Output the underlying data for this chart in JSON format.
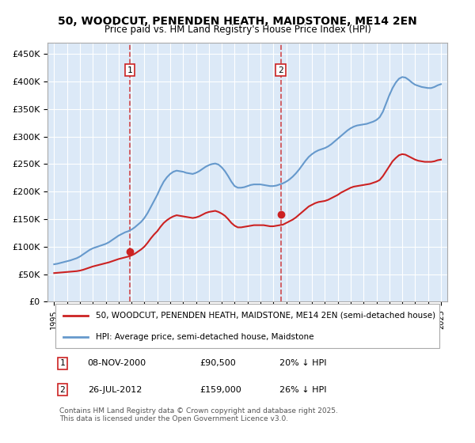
{
  "title": "50, WOODCUT, PENENDEN HEATH, MAIDSTONE, ME14 2EN",
  "subtitle": "Price paid vs. HM Land Registry's House Price Index (HPI)",
  "bg_color": "#dce9f7",
  "plot_bg_color": "#dce9f7",
  "grid_color": "#ffffff",
  "hpi_color": "#6699cc",
  "price_color": "#cc2222",
  "dashed_line_color": "#cc2222",
  "sale1_x": 2000.86,
  "sale1_y": 90500,
  "sale2_x": 2012.57,
  "sale2_y": 159000,
  "legend1": "50, WOODCUT, PENENDEN HEATH, MAIDSTONE, ME14 2EN (semi-detached house)",
  "legend2": "HPI: Average price, semi-detached house, Maidstone",
  "annotation1_label": "1",
  "annotation1_date": "08-NOV-2000",
  "annotation1_price": "£90,500",
  "annotation1_pct": "20% ↓ HPI",
  "annotation2_label": "2",
  "annotation2_date": "26-JUL-2012",
  "annotation2_price": "£159,000",
  "annotation2_pct": "26% ↓ HPI",
  "footer": "Contains HM Land Registry data © Crown copyright and database right 2025.\nThis data is licensed under the Open Government Licence v3.0.",
  "ylim_min": 0,
  "ylim_max": 470000,
  "yticks": [
    0,
    50000,
    100000,
    150000,
    200000,
    250000,
    300000,
    350000,
    400000,
    450000
  ],
  "xlim_min": 1994.5,
  "xlim_max": 2025.5,
  "hpi_years": [
    1995,
    1995.25,
    1995.5,
    1995.75,
    1996,
    1996.25,
    1996.5,
    1996.75,
    1997,
    1997.25,
    1997.5,
    1997.75,
    1998,
    1998.25,
    1998.5,
    1998.75,
    1999,
    1999.25,
    1999.5,
    1999.75,
    2000,
    2000.25,
    2000.5,
    2000.75,
    2001,
    2001.25,
    2001.5,
    2001.75,
    2002,
    2002.25,
    2002.5,
    2002.75,
    2003,
    2003.25,
    2003.5,
    2003.75,
    2004,
    2004.25,
    2004.5,
    2004.75,
    2005,
    2005.25,
    2005.5,
    2005.75,
    2006,
    2006.25,
    2006.5,
    2006.75,
    2007,
    2007.25,
    2007.5,
    2007.75,
    2008,
    2008.25,
    2008.5,
    2008.75,
    2009,
    2009.25,
    2009.5,
    2009.75,
    2010,
    2010.25,
    2010.5,
    2010.75,
    2011,
    2011.25,
    2011.5,
    2011.75,
    2012,
    2012.25,
    2012.5,
    2012.75,
    2013,
    2013.25,
    2013.5,
    2013.75,
    2014,
    2014.25,
    2014.5,
    2014.75,
    2015,
    2015.25,
    2015.5,
    2015.75,
    2016,
    2016.25,
    2016.5,
    2016.75,
    2017,
    2017.25,
    2017.5,
    2017.75,
    2018,
    2018.25,
    2018.5,
    2018.75,
    2019,
    2019.25,
    2019.5,
    2019.75,
    2020,
    2020.25,
    2020.5,
    2020.75,
    2021,
    2021.25,
    2021.5,
    2021.75,
    2022,
    2022.25,
    2022.5,
    2022.75,
    2023,
    2023.25,
    2023.5,
    2023.75,
    2024,
    2024.25,
    2024.5,
    2024.75,
    2025
  ],
  "hpi_values": [
    68000,
    69000,
    70500,
    72000,
    73500,
    75000,
    77000,
    79000,
    82000,
    86000,
    90000,
    94000,
    97000,
    99000,
    101000,
    103000,
    105000,
    108000,
    112000,
    116000,
    120000,
    123000,
    126000,
    128000,
    131000,
    135000,
    140000,
    145000,
    152000,
    161000,
    172000,
    183000,
    194000,
    207000,
    218000,
    226000,
    232000,
    236000,
    238000,
    237000,
    236000,
    234000,
    233000,
    232000,
    234000,
    237000,
    241000,
    245000,
    248000,
    250000,
    251000,
    249000,
    244000,
    237000,
    228000,
    218000,
    210000,
    207000,
    207000,
    208000,
    210000,
    212000,
    213000,
    213000,
    213000,
    212000,
    211000,
    210000,
    210000,
    211000,
    213000,
    215000,
    218000,
    222000,
    227000,
    233000,
    240000,
    248000,
    256000,
    263000,
    268000,
    272000,
    275000,
    277000,
    279000,
    282000,
    286000,
    291000,
    296000,
    301000,
    306000,
    311000,
    315000,
    318000,
    320000,
    321000,
    322000,
    323000,
    325000,
    327000,
    330000,
    335000,
    345000,
    360000,
    375000,
    388000,
    398000,
    405000,
    408000,
    407000,
    403000,
    398000,
    394000,
    392000,
    390000,
    389000,
    388000,
    388000,
    390000,
    393000,
    395000
  ],
  "price_years": [
    1995,
    1995.25,
    1995.5,
    1995.75,
    1996,
    1996.25,
    1996.5,
    1996.75,
    1997,
    1997.25,
    1997.5,
    1997.75,
    1998,
    1998.25,
    1998.5,
    1998.75,
    1999,
    1999.25,
    1999.5,
    1999.75,
    2000,
    2000.25,
    2000.5,
    2000.75,
    2001,
    2001.25,
    2001.5,
    2001.75,
    2002,
    2002.25,
    2002.5,
    2002.75,
    2003,
    2003.25,
    2003.5,
    2003.75,
    2004,
    2004.25,
    2004.5,
    2004.75,
    2005,
    2005.25,
    2005.5,
    2005.75,
    2006,
    2006.25,
    2006.5,
    2006.75,
    2007,
    2007.25,
    2007.5,
    2007.75,
    2008,
    2008.25,
    2008.5,
    2008.75,
    2009,
    2009.25,
    2009.5,
    2009.75,
    2010,
    2010.25,
    2010.5,
    2010.75,
    2011,
    2011.25,
    2011.5,
    2011.75,
    2012,
    2012.25,
    2012.5,
    2012.75,
    2013,
    2013.25,
    2013.5,
    2013.75,
    2014,
    2014.25,
    2014.5,
    2014.75,
    2015,
    2015.25,
    2015.5,
    2015.75,
    2016,
    2016.25,
    2016.5,
    2016.75,
    2017,
    2017.25,
    2017.5,
    2017.75,
    2018,
    2018.25,
    2018.5,
    2018.75,
    2019,
    2019.25,
    2019.5,
    2019.75,
    2020,
    2020.25,
    2020.5,
    2020.75,
    2021,
    2021.25,
    2021.5,
    2021.75,
    2022,
    2022.25,
    2022.5,
    2022.75,
    2023,
    2023.25,
    2023.5,
    2023.75,
    2024,
    2024.25,
    2024.5,
    2024.75,
    2025
  ],
  "price_values": [
    52000,
    52500,
    53000,
    53500,
    54000,
    54500,
    55000,
    55500,
    56500,
    58000,
    60000,
    62000,
    64000,
    65500,
    67000,
    68500,
    70000,
    71500,
    73500,
    75500,
    77500,
    79000,
    80500,
    82000,
    84000,
    87000,
    91000,
    95000,
    100000,
    107000,
    115000,
    122000,
    128000,
    136000,
    143000,
    148000,
    152000,
    155000,
    157000,
    156000,
    155000,
    154000,
    153000,
    152000,
    153000,
    155000,
    158000,
    161000,
    163000,
    164000,
    165000,
    163000,
    160000,
    156000,
    150000,
    143000,
    138000,
    135000,
    135000,
    136000,
    137000,
    138000,
    139000,
    139000,
    139000,
    139000,
    138000,
    137000,
    137000,
    138000,
    139000,
    140000,
    143000,
    146000,
    149000,
    153000,
    158000,
    163000,
    168000,
    173000,
    176000,
    179000,
    181000,
    182000,
    183000,
    185000,
    188000,
    191000,
    194000,
    198000,
    201000,
    204000,
    207000,
    209000,
    210000,
    211000,
    212000,
    213000,
    214000,
    216000,
    218000,
    221000,
    228000,
    237000,
    246000,
    255000,
    261000,
    266000,
    268000,
    267000,
    264000,
    261000,
    258000,
    256000,
    255000,
    254000,
    254000,
    254000,
    255000,
    257000,
    258000
  ],
  "xticks": [
    1995,
    1996,
    1997,
    1998,
    1999,
    2000,
    2001,
    2002,
    2003,
    2004,
    2005,
    2006,
    2007,
    2008,
    2009,
    2010,
    2011,
    2012,
    2013,
    2014,
    2015,
    2016,
    2017,
    2018,
    2019,
    2020,
    2021,
    2022,
    2023,
    2024,
    2025
  ]
}
